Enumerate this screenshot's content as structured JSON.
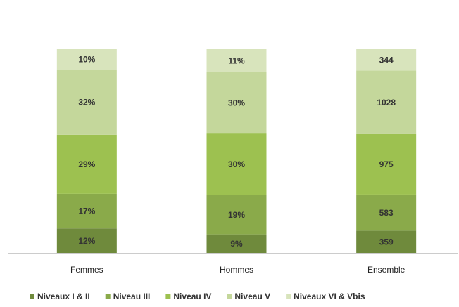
{
  "chart_data": {
    "type": "bar",
    "stacking": "percent",
    "categories": [
      "Femmes",
      "Hommes",
      "Ensemble"
    ],
    "series": [
      {
        "name": "Niveaux I & II",
        "color": "#6f8a3c",
        "values": [
          12,
          9,
          359
        ],
        "value_labels": [
          "12%",
          "9%",
          "359"
        ]
      },
      {
        "name": "Niveau III",
        "color": "#8aaa4a",
        "values": [
          17,
          19,
          583
        ],
        "value_labels": [
          "17%",
          "19%",
          "583"
        ]
      },
      {
        "name": "Niveau IV",
        "color": "#9dc150",
        "values": [
          29,
          30,
          975
        ],
        "value_labels": [
          "29%",
          "30%",
          "975"
        ]
      },
      {
        "name": "Niveau V",
        "color": "#c4d79b",
        "values": [
          32,
          30,
          1028
        ],
        "value_labels": [
          "32%",
          "30%",
          "1028"
        ]
      },
      {
        "name": "Niveaux VI & Vbis",
        "color": "#d8e4bc",
        "values": [
          10,
          11,
          344
        ],
        "value_labels": [
          "10%",
          "11%",
          "344"
        ]
      }
    ],
    "legend": "bottom"
  }
}
